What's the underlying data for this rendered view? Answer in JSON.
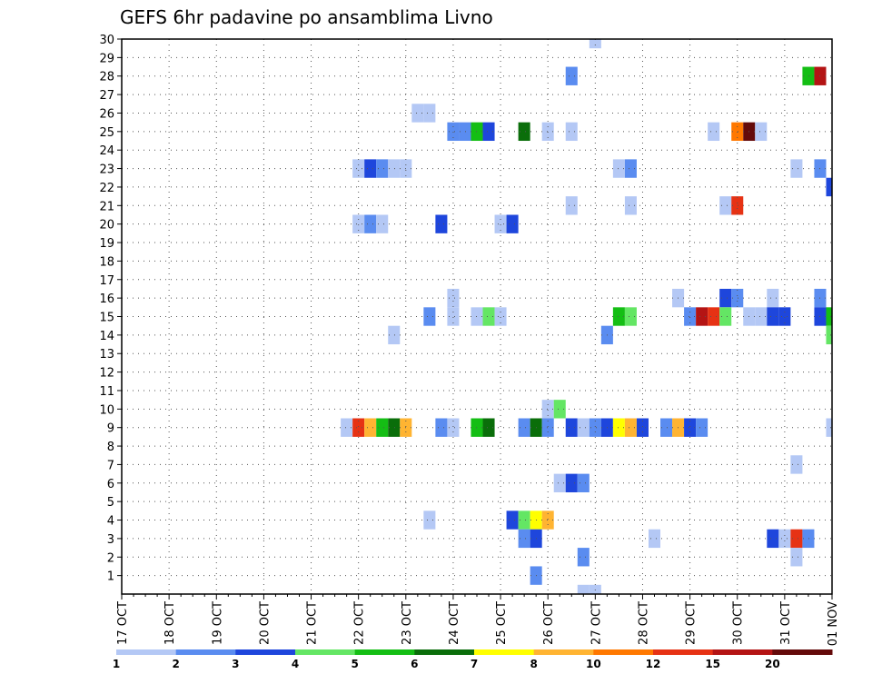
{
  "chart_data": {
    "type": "heatmap",
    "title": "GEFS 6hr padavine po ansamblima Livno",
    "xlabel": "",
    "ylabel": "",
    "x_ticks": [
      "17 OCT",
      "18 OCT",
      "19 OCT",
      "20 OCT",
      "21 OCT",
      "22 OCT",
      "23 OCT",
      "24 OCT",
      "25 OCT",
      "26 OCT",
      "27 OCT",
      "28 OCT",
      "29 OCT",
      "30 OCT",
      "31 OCT",
      "01 NOV"
    ],
    "y_ticks": [
      1,
      2,
      3,
      4,
      5,
      6,
      7,
      8,
      9,
      10,
      11,
      12,
      13,
      14,
      15,
      16,
      17,
      18,
      19,
      20,
      21,
      22,
      23,
      24,
      25,
      26,
      27,
      28,
      29,
      30
    ],
    "xlim_steps": [
      0,
      60
    ],
    "ylim": [
      0,
      30
    ],
    "grid": true,
    "colorbar": {
      "labels": [
        "1",
        "2",
        "3",
        "4",
        "5",
        "6",
        "7",
        "8",
        "10",
        "12",
        "15",
        "20"
      ],
      "colors": [
        "#b4c8f5",
        "#5a8cf0",
        "#1e46dc",
        "#64e664",
        "#14be14",
        "#0a6e0a",
        "#ffff00",
        "#ffb432",
        "#ff7800",
        "#e63214",
        "#b41414",
        "#640a0a"
      ]
    },
    "points": [
      [
        40,
        30,
        "#b4c8f5"
      ],
      [
        38,
        28,
        "#5a8cf0"
      ],
      [
        58,
        28,
        "#14be14"
      ],
      [
        59,
        28,
        "#b41414"
      ],
      [
        25,
        26,
        "#b4c8f5"
      ],
      [
        26,
        26,
        "#b4c8f5"
      ],
      [
        28,
        25,
        "#5a8cf0"
      ],
      [
        29,
        25,
        "#5a8cf0"
      ],
      [
        30,
        25,
        "#14be14"
      ],
      [
        31,
        25,
        "#1e46dc"
      ],
      [
        34,
        25,
        "#0a6e0a"
      ],
      [
        36,
        25,
        "#b4c8f5"
      ],
      [
        38,
        25,
        "#b4c8f5"
      ],
      [
        50,
        25,
        "#b4c8f5"
      ],
      [
        52,
        25,
        "#ff7800"
      ],
      [
        53,
        25,
        "#640a0a"
      ],
      [
        54,
        25,
        "#b4c8f5"
      ],
      [
        20,
        23,
        "#b4c8f5"
      ],
      [
        21,
        23,
        "#1e46dc"
      ],
      [
        22,
        23,
        "#5a8cf0"
      ],
      [
        23,
        23,
        "#b4c8f5"
      ],
      [
        24,
        23,
        "#b4c8f5"
      ],
      [
        42,
        23,
        "#b4c8f5"
      ],
      [
        43,
        23,
        "#5a8cf0"
      ],
      [
        57,
        23,
        "#b4c8f5"
      ],
      [
        59,
        23,
        "#5a8cf0"
      ],
      [
        60,
        22,
        "#1e46dc"
      ],
      [
        38,
        21,
        "#b4c8f5"
      ],
      [
        43,
        21,
        "#b4c8f5"
      ],
      [
        51,
        21,
        "#b4c8f5"
      ],
      [
        52,
        21,
        "#e63214"
      ],
      [
        20,
        20,
        "#b4c8f5"
      ],
      [
        21,
        20,
        "#5a8cf0"
      ],
      [
        22,
        20,
        "#b4c8f5"
      ],
      [
        27,
        20,
        "#1e46dc"
      ],
      [
        32,
        20,
        "#b4c8f5"
      ],
      [
        33,
        20,
        "#1e46dc"
      ],
      [
        28,
        16,
        "#b4c8f5"
      ],
      [
        47,
        16,
        "#b4c8f5"
      ],
      [
        51,
        16,
        "#1e46dc"
      ],
      [
        52,
        16,
        "#5a8cf0"
      ],
      [
        55,
        16,
        "#b4c8f5"
      ],
      [
        59,
        16,
        "#5a8cf0"
      ],
      [
        26,
        15,
        "#5a8cf0"
      ],
      [
        28,
        15,
        "#b4c8f5"
      ],
      [
        30,
        15,
        "#b4c8f5"
      ],
      [
        31,
        15,
        "#64e664"
      ],
      [
        32,
        15,
        "#b4c8f5"
      ],
      [
        42,
        15,
        "#14be14"
      ],
      [
        43,
        15,
        "#64e664"
      ],
      [
        48,
        15,
        "#5a8cf0"
      ],
      [
        49,
        15,
        "#b41414"
      ],
      [
        50,
        15,
        "#e63214"
      ],
      [
        51,
        15,
        "#64e664"
      ],
      [
        53,
        15,
        "#b4c8f5"
      ],
      [
        54,
        15,
        "#b4c8f5"
      ],
      [
        55,
        15,
        "#1e46dc"
      ],
      [
        56,
        15,
        "#1e46dc"
      ],
      [
        59,
        15,
        "#1e46dc"
      ],
      [
        60,
        15,
        "#14be14"
      ],
      [
        23,
        14,
        "#b4c8f5"
      ],
      [
        41,
        14,
        "#5a8cf0"
      ],
      [
        60,
        14,
        "#64e664"
      ],
      [
        36,
        10,
        "#b4c8f5"
      ],
      [
        37,
        10,
        "#64e664"
      ],
      [
        19,
        9,
        "#b4c8f5"
      ],
      [
        20,
        9,
        "#e63214"
      ],
      [
        21,
        9,
        "#ffb432"
      ],
      [
        22,
        9,
        "#14be14"
      ],
      [
        23,
        9,
        "#0a6e0a"
      ],
      [
        24,
        9,
        "#ffb432"
      ],
      [
        27,
        9,
        "#5a8cf0"
      ],
      [
        28,
        9,
        "#b4c8f5"
      ],
      [
        30,
        9,
        "#14be14"
      ],
      [
        31,
        9,
        "#0a6e0a"
      ],
      [
        34,
        9,
        "#5a8cf0"
      ],
      [
        35,
        9,
        "#0a6e0a"
      ],
      [
        36,
        9,
        "#5a8cf0"
      ],
      [
        38,
        9,
        "#1e46dc"
      ],
      [
        39,
        9,
        "#b4c8f5"
      ],
      [
        40,
        9,
        "#5a8cf0"
      ],
      [
        41,
        9,
        "#1e46dc"
      ],
      [
        42,
        9,
        "#ffff00"
      ],
      [
        43,
        9,
        "#ffb432"
      ],
      [
        44,
        9,
        "#1e46dc"
      ],
      [
        46,
        9,
        "#5a8cf0"
      ],
      [
        47,
        9,
        "#ffb432"
      ],
      [
        48,
        9,
        "#1e46dc"
      ],
      [
        49,
        9,
        "#5a8cf0"
      ],
      [
        60,
        9,
        "#b4c8f5"
      ],
      [
        57,
        7,
        "#b4c8f5"
      ],
      [
        37,
        6,
        "#b4c8f5"
      ],
      [
        38,
        6,
        "#1e46dc"
      ],
      [
        39,
        6,
        "#5a8cf0"
      ],
      [
        26,
        4,
        "#b4c8f5"
      ],
      [
        33,
        4,
        "#1e46dc"
      ],
      [
        34,
        4,
        "#64e664"
      ],
      [
        35,
        4,
        "#ffff00"
      ],
      [
        36,
        4,
        "#ffb432"
      ],
      [
        34,
        3,
        "#5a8cf0"
      ],
      [
        35,
        3,
        "#1e46dc"
      ],
      [
        45,
        3,
        "#b4c8f5"
      ],
      [
        55,
        3,
        "#1e46dc"
      ],
      [
        56,
        3,
        "#b4c8f5"
      ],
      [
        57,
        3,
        "#e63214"
      ],
      [
        58,
        3,
        "#5a8cf0"
      ],
      [
        39,
        2,
        "#5a8cf0"
      ],
      [
        57,
        2,
        "#b4c8f5"
      ],
      [
        35,
        1,
        "#5a8cf0"
      ],
      [
        39,
        0,
        "#b4c8f5"
      ],
      [
        40,
        0,
        "#b4c8f5"
      ]
    ]
  }
}
